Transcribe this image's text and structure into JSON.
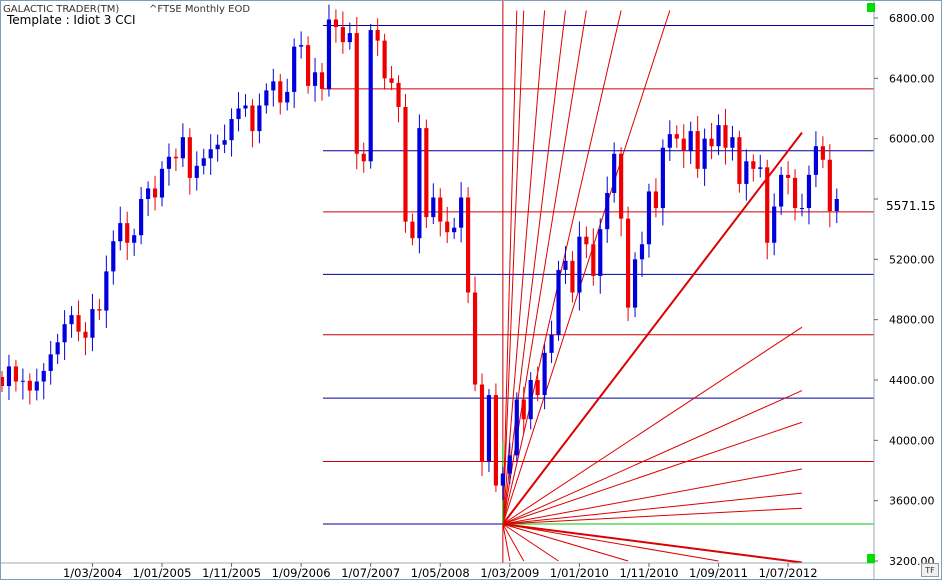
{
  "header": {
    "app_title": "GALACTIC TRADER(TM)",
    "symbol": "^FTSE Monthly EOD",
    "template_label": "Template : Idiot 3 CCI"
  },
  "price_tag": "5571.15",
  "tf_label": "TF",
  "colors": {
    "up": "#0000dd",
    "down": "#ee0000",
    "support": "#000099",
    "resistance": "#cc0000",
    "fan": "#dd0000",
    "green": "#00cc00"
  },
  "chart_data": {
    "type": "candlestick",
    "ylim": [
      3200,
      6850
    ],
    "yticks": [
      3200,
      3600,
      4000,
      4400,
      4800,
      5200,
      5600,
      6000,
      6400,
      6800
    ],
    "ytick_labels": [
      "3200.00",
      "3600.00",
      "4000.00",
      "4400.00",
      "4800.00",
      "5200.00",
      "5600.00",
      "6000.00",
      "6400.00",
      "6800.00"
    ],
    "x_start": "2003-02",
    "x_end": "2012-09",
    "xticks": [
      "2004-03",
      "2005-01",
      "2005-11",
      "2006-09",
      "2007-07",
      "2008-05",
      "2009-03",
      "2010-01",
      "2010-11",
      "2011-09",
      "2012-07"
    ],
    "xtick_labels": [
      "1/03/2004",
      "1/01/2005",
      "1/11/2005",
      "1/09/2006",
      "1/07/2007",
      "1/05/2008",
      "1/03/2009",
      "1/01/2010",
      "1/11/2010",
      "1/09/2011",
      "1/07/2012"
    ],
    "closes": [
      4360,
      4490,
      4390,
      4395,
      4330,
      4390,
      4460,
      4570,
      4650,
      4770,
      4830,
      4720,
      4680,
      4870,
      4860,
      5120,
      5320,
      5440,
      5310,
      5360,
      5600,
      5670,
      5610,
      5800,
      5880,
      5870,
      6010,
      5740,
      5820,
      5870,
      5930,
      5960,
      5990,
      6130,
      6200,
      6220,
      6050,
      6220,
      6320,
      6380,
      6240,
      6310,
      6610,
      6620,
      6350,
      6440,
      6330,
      6790,
      6740,
      6640,
      6700,
      5900,
      5850,
      6720,
      6650,
      6400,
      6370,
      6210,
      5450,
      5340,
      6070,
      5480,
      5610,
      5450,
      5380,
      5410,
      5610,
      4980,
      4370,
      3860,
      4300,
      3700,
      3780,
      3900,
      4270,
      4140,
      4400,
      4300,
      4580,
      4700,
      5130,
      5190,
      4980,
      5350,
      5300,
      5090,
      5400,
      5640,
      5900,
      5470,
      4880,
      5200,
      5300,
      5650,
      5540,
      5940,
      6030,
      6000,
      5920,
      6050,
      5800,
      6000,
      5950,
      6090,
      5940,
      6010,
      5700,
      5850,
      5800,
      5810,
      5310,
      5550,
      5760,
      5740,
      5540,
      5540,
      5760,
      5950,
      5860,
      5520,
      5600
    ],
    "horizontal_lines": [
      {
        "value": 6750,
        "type": "support"
      },
      {
        "value": 6330,
        "type": "resistance"
      },
      {
        "value": 5920,
        "type": "support"
      },
      {
        "value": 5515,
        "type": "resistance"
      },
      {
        "value": 5100,
        "type": "support"
      },
      {
        "value": 4700,
        "type": "resistance"
      },
      {
        "value": 4280,
        "type": "support"
      },
      {
        "value": 3860,
        "type": "resistance"
      },
      {
        "value": 3445,
        "type": "support"
      },
      {
        "value": 3445,
        "type": "green"
      }
    ],
    "vertical_line": "2009-02",
    "fan_origin": {
      "x": "2009-02",
      "y": 3445
    },
    "fan_lines": [
      {
        "x": "2012-09",
        "y": 6040,
        "thick": true
      },
      {
        "x": "2012-09",
        "y": 4750
      },
      {
        "x": "2012-09",
        "y": 4330
      },
      {
        "x": "2012-09",
        "y": 4120
      },
      {
        "x": "2012-09",
        "y": 3810
      },
      {
        "x": "2012-09",
        "y": 3190,
        "thick": true
      },
      {
        "x": "2011-02",
        "y": 6850
      },
      {
        "x": "2010-07",
        "y": 6850
      },
      {
        "x": "2010-02",
        "y": 6850
      },
      {
        "x": "2009-11",
        "y": 6850
      },
      {
        "x": "2009-08",
        "y": 6850
      },
      {
        "x": "2009-05",
        "y": 6850
      },
      {
        "x": "2009-04",
        "y": 6850
      },
      {
        "x": "2012-09",
        "y": 3650
      },
      {
        "x": "2012-09",
        "y": 3550
      },
      {
        "x": "2011-09",
        "y": 3200
      },
      {
        "x": "2010-08",
        "y": 3200
      },
      {
        "x": "2009-10",
        "y": 3200
      },
      {
        "x": "2009-05",
        "y": 3200
      },
      {
        "x": "2009-03",
        "y": 3200
      }
    ],
    "green_segment": {
      "x": "2009-02",
      "y_from": 3445,
      "y_to": 3990
    }
  }
}
